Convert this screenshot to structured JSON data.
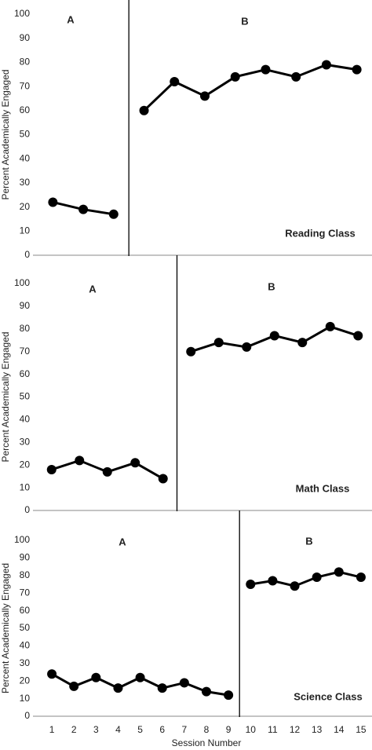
{
  "chart_data": [
    {
      "type": "line",
      "ylabel": "Percent Academically Engaged",
      "label": "Reading Class",
      "phase_labels": [
        "A",
        "B"
      ],
      "categories": [
        null,
        null,
        null,
        null,
        null,
        null,
        null,
        null,
        null,
        null,
        null
      ],
      "series": [
        {
          "color": "#000000",
          "values": [
            22,
            19,
            17,
            null,
            null,
            null,
            null,
            null,
            null,
            null,
            null
          ]
        },
        {
          "color": "#000000",
          "values": [
            null,
            null,
            null,
            60,
            72,
            66,
            74,
            77,
            74,
            79,
            77
          ]
        }
      ],
      "phase_change": 3.5,
      "ylim": [
        0,
        100
      ],
      "yticks": [
        0,
        10,
        20,
        30,
        40,
        50,
        60,
        70,
        80,
        90,
        100
      ]
    },
    {
      "type": "line",
      "ylabel": "Percent Academically Engaged",
      "label": "Math Class",
      "phase_labels": [
        "A",
        "B"
      ],
      "categories": [
        null,
        null,
        null,
        null,
        null,
        null,
        null,
        null,
        null,
        null,
        null,
        null
      ],
      "series": [
        {
          "color": "#000000",
          "values": [
            18,
            22,
            17,
            21,
            14,
            null,
            null,
            null,
            null,
            null,
            null,
            null
          ]
        },
        {
          "color": "#000000",
          "values": [
            null,
            null,
            null,
            null,
            null,
            70,
            74,
            72,
            77,
            74,
            81,
            77
          ]
        }
      ],
      "phase_change": 5.5,
      "ylim": [
        0,
        100
      ],
      "yticks": [
        0,
        10,
        20,
        30,
        40,
        50,
        60,
        70,
        80,
        90,
        100
      ]
    },
    {
      "type": "line",
      "ylabel": "Percent Academically Engaged",
      "label": "Science Class",
      "phase_labels": [
        "A",
        "B"
      ],
      "xlabel": "Session Number",
      "categories": [
        1,
        2,
        3,
        4,
        5,
        6,
        7,
        8,
        9,
        10,
        11,
        12,
        13,
        14,
        15
      ],
      "series": [
        {
          "color": "#000000",
          "values": [
            24,
            17,
            22,
            16,
            22,
            16,
            19,
            14,
            12,
            null,
            null,
            null,
            null,
            null,
            null
          ]
        },
        {
          "color": "#000000",
          "values": [
            null,
            null,
            null,
            null,
            null,
            null,
            null,
            null,
            null,
            75,
            77,
            74,
            79,
            82,
            79
          ]
        }
      ],
      "phase_change": 9.5,
      "ylim": [
        0,
        100
      ],
      "yticks": [
        0,
        10,
        20,
        30,
        40,
        50,
        60,
        70,
        80,
        90,
        100
      ]
    }
  ]
}
